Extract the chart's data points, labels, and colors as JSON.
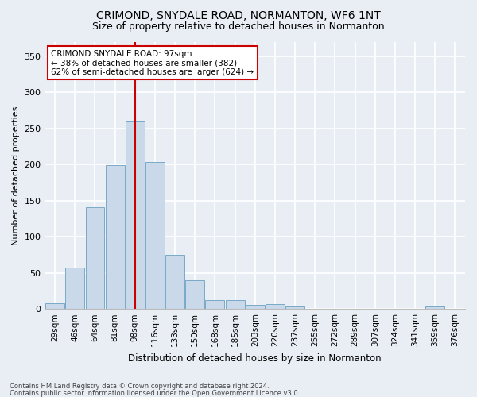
{
  "title1": "CRIMOND, SNYDALE ROAD, NORMANTON, WF6 1NT",
  "title2": "Size of property relative to detached houses in Normanton",
  "xlabel": "Distribution of detached houses by size in Normanton",
  "ylabel": "Number of detached properties",
  "bar_color": "#c9d9ea",
  "bar_edge_color": "#7aaac8",
  "categories": [
    "29sqm",
    "46sqm",
    "64sqm",
    "81sqm",
    "98sqm",
    "116sqm",
    "133sqm",
    "150sqm",
    "168sqm",
    "185sqm",
    "203sqm",
    "220sqm",
    "237sqm",
    "255sqm",
    "272sqm",
    "289sqm",
    "307sqm",
    "324sqm",
    "341sqm",
    "359sqm",
    "376sqm"
  ],
  "values": [
    8,
    57,
    141,
    199,
    260,
    203,
    75,
    40,
    12,
    12,
    6,
    7,
    3,
    0,
    0,
    0,
    0,
    0,
    0,
    3,
    0
  ],
  "vline_x": 4,
  "vline_color": "#cc0000",
  "ylim": [
    0,
    370
  ],
  "yticks": [
    0,
    50,
    100,
    150,
    200,
    250,
    300,
    350
  ],
  "annotation_title": "CRIMOND SNYDALE ROAD: 97sqm",
  "annotation_line1": "← 38% of detached houses are smaller (382)",
  "annotation_line2": "62% of semi-detached houses are larger (624) →",
  "annotation_box_color": "#ffffff",
  "annotation_box_edge": "#cc0000",
  "footer1": "Contains HM Land Registry data © Crown copyright and database right 2024.",
  "footer2": "Contains public sector information licensed under the Open Government Licence v3.0.",
  "bg_color": "#e8eef4",
  "plot_bg_color": "#e8eef4",
  "grid_color": "#ffffff",
  "title1_fontsize": 10,
  "title2_fontsize": 9
}
